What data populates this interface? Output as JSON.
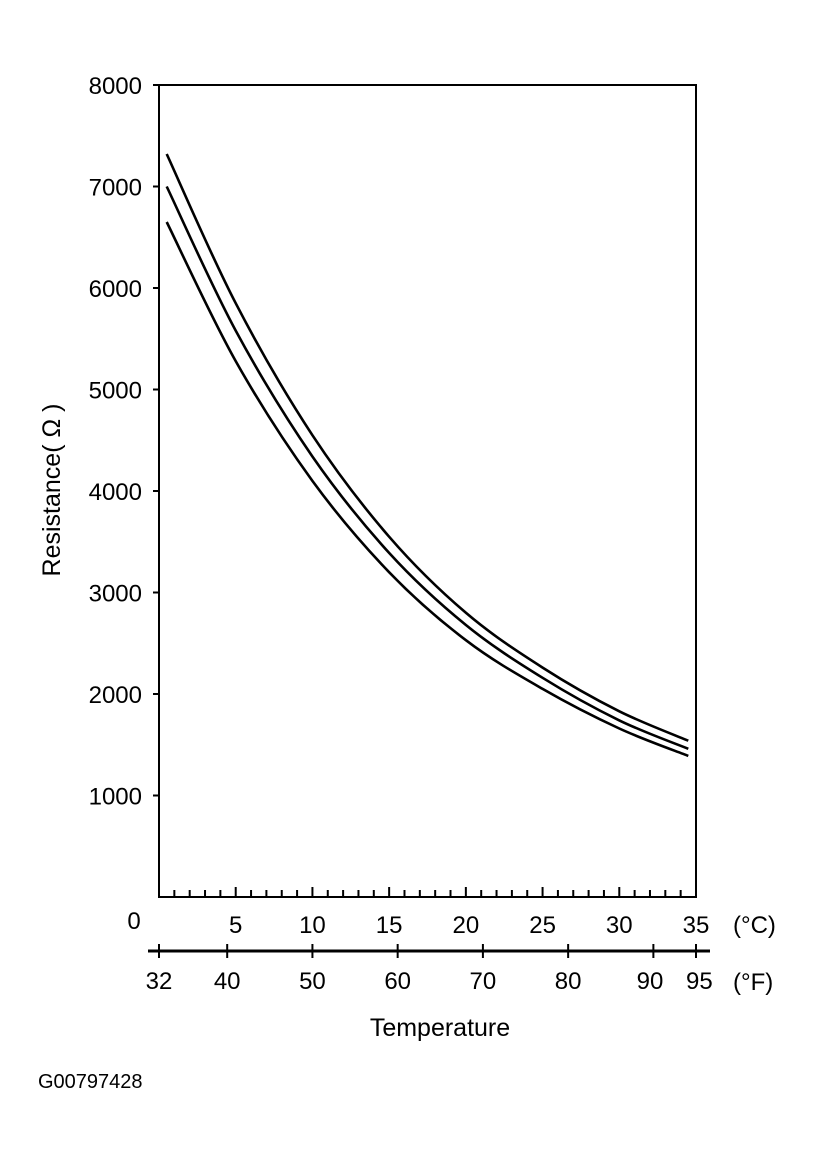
{
  "chart_data": {
    "type": "line",
    "title": "",
    "ylabel": "Resistance( Ω )",
    "xlabel": "Temperature",
    "figure_id": "G00797428",
    "x_unit_c": "(°C)",
    "x_unit_f": "(°F)",
    "origin_label": "0",
    "xlim_c": [
      0,
      35
    ],
    "ylim": [
      0,
      8000
    ],
    "y_ticks": [
      1000,
      2000,
      3000,
      4000,
      5000,
      6000,
      7000,
      8000
    ],
    "x_ticks_c": [
      5,
      10,
      15,
      20,
      25,
      30,
      35
    ],
    "x_ticks_f": [
      32,
      40,
      50,
      60,
      70,
      80,
      90,
      95
    ],
    "x_minor_c": [
      1,
      2,
      3,
      4,
      6,
      7,
      8,
      9,
      11,
      12,
      13,
      14,
      16,
      17,
      18,
      19,
      21,
      22,
      23,
      24,
      26,
      27,
      28,
      29,
      31,
      32,
      33,
      34
    ],
    "grid": false,
    "series": [
      {
        "x": [
          0.5,
          5,
          10,
          15,
          20,
          25,
          30,
          34.5
        ],
        "values": [
          7320,
          5850,
          4550,
          3550,
          2800,
          2260,
          1830,
          1540
        ]
      },
      {
        "x": [
          0.5,
          5,
          10,
          15,
          20,
          25,
          30,
          34.5
        ],
        "values": [
          7000,
          5580,
          4340,
          3390,
          2680,
          2160,
          1740,
          1460
        ]
      },
      {
        "x": [
          0.5,
          5,
          10,
          15,
          20,
          25,
          30,
          34.5
        ],
        "values": [
          6650,
          5280,
          4100,
          3200,
          2530,
          2050,
          1660,
          1390
        ]
      }
    ],
    "colors": {
      "line": "#000000",
      "background": "#ffffff"
    }
  }
}
